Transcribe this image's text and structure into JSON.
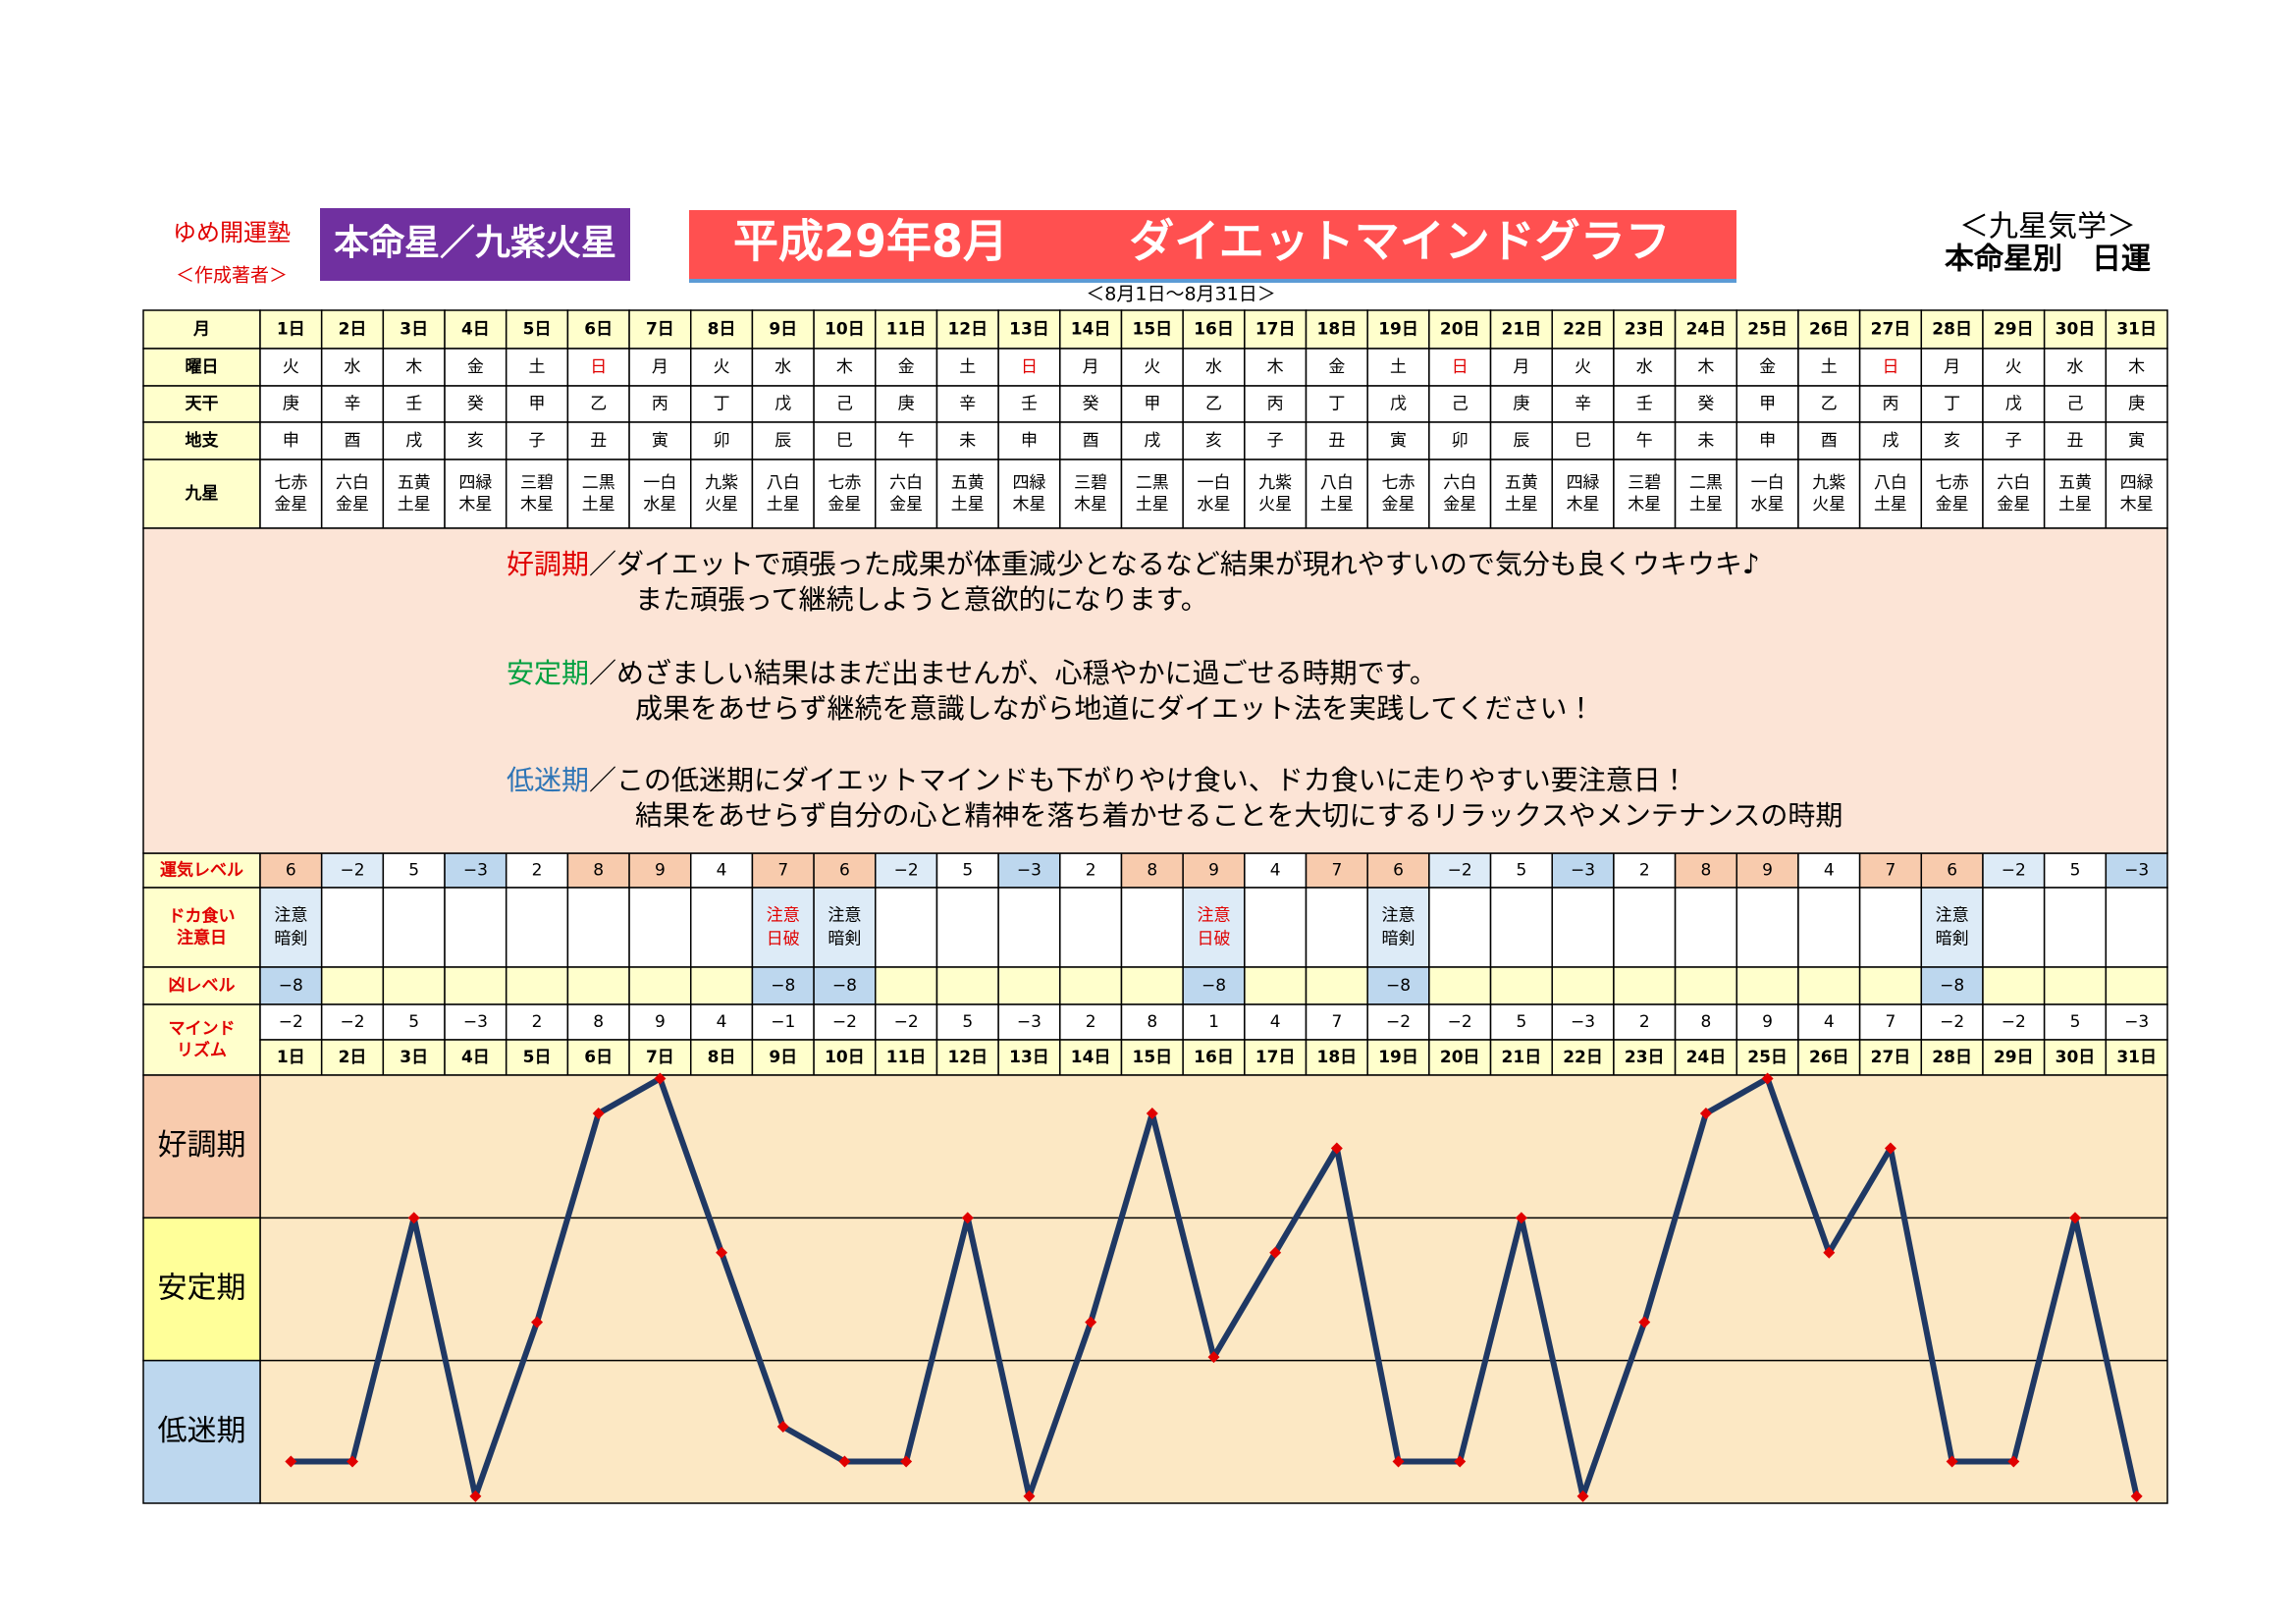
{
  "header": {
    "school": "ゆめ開運塾",
    "author": "＜作成著者＞",
    "honmei": "本命星／九紫火星",
    "period": "平成29年8月",
    "title": "ダイエットマインドグラフ",
    "category": "＜九星気学＞",
    "subcategory": "本命星別　日運",
    "date_range": "＜8月1日～8月31日＞"
  },
  "table": {
    "row_labels": {
      "month": "月",
      "weekday": "曜日",
      "tenkan": "天干",
      "chishi": "地支",
      "kyusei": "九星",
      "luck": "運気レベル",
      "binge": [
        "ドカ食い",
        "注意日"
      ],
      "bad": "凶レベル",
      "rhythm": [
        "マインド",
        "リズム"
      ]
    },
    "days": [
      "1日",
      "2日",
      "3日",
      "4日",
      "5日",
      "6日",
      "7日",
      "8日",
      "9日",
      "10日",
      "11日",
      "12日",
      "13日",
      "14日",
      "15日",
      "16日",
      "17日",
      "18日",
      "19日",
      "20日",
      "21日",
      "22日",
      "23日",
      "24日",
      "25日",
      "26日",
      "27日",
      "28日",
      "29日",
      "30日",
      "31日"
    ],
    "weekday": [
      "火",
      "水",
      "木",
      "金",
      "土",
      "日",
      "月",
      "火",
      "水",
      "木",
      "金",
      "土",
      "日",
      "月",
      "火",
      "水",
      "木",
      "金",
      "土",
      "日",
      "月",
      "火",
      "水",
      "木",
      "金",
      "土",
      "日",
      "月",
      "火",
      "水",
      "木"
    ],
    "weekday_color": [
      "#000",
      "#000",
      "#000",
      "#000",
      "#000",
      "#e00000",
      "#000",
      "#000",
      "#000",
      "#000",
      "#000",
      "#000",
      "#e00000",
      "#000",
      "#000",
      "#000",
      "#000",
      "#000",
      "#000",
      "#e00000",
      "#000",
      "#000",
      "#000",
      "#000",
      "#000",
      "#000",
      "#e00000",
      "#000",
      "#000",
      "#000",
      "#000"
    ],
    "tenkan": [
      "庚",
      "辛",
      "壬",
      "癸",
      "甲",
      "乙",
      "丙",
      "丁",
      "戊",
      "己",
      "庚",
      "辛",
      "壬",
      "癸",
      "甲",
      "乙",
      "丙",
      "丁",
      "戊",
      "己",
      "庚",
      "辛",
      "壬",
      "癸",
      "甲",
      "乙",
      "丙",
      "丁",
      "戊",
      "己",
      "庚"
    ],
    "chishi": [
      "申",
      "酉",
      "戌",
      "亥",
      "子",
      "丑",
      "寅",
      "卯",
      "辰",
      "巳",
      "午",
      "未",
      "申",
      "酉",
      "戌",
      "亥",
      "子",
      "丑",
      "寅",
      "卯",
      "辰",
      "巳",
      "午",
      "未",
      "申",
      "酉",
      "戌",
      "亥",
      "子",
      "丑",
      "寅"
    ],
    "kyusei": [
      [
        "七赤",
        "金星"
      ],
      [
        "六白",
        "金星"
      ],
      [
        "五黄",
        "土星"
      ],
      [
        "四緑",
        "木星"
      ],
      [
        "三碧",
        "木星"
      ],
      [
        "二黒",
        "土星"
      ],
      [
        "一白",
        "水星"
      ],
      [
        "九紫",
        "火星"
      ],
      [
        "八白",
        "土星"
      ],
      [
        "七赤",
        "金星"
      ],
      [
        "六白",
        "金星"
      ],
      [
        "五黄",
        "土星"
      ],
      [
        "四緑",
        "木星"
      ],
      [
        "三碧",
        "木星"
      ],
      [
        "二黒",
        "土星"
      ],
      [
        "一白",
        "水星"
      ],
      [
        "九紫",
        "火星"
      ],
      [
        "八白",
        "土星"
      ],
      [
        "七赤",
        "金星"
      ],
      [
        "六白",
        "金星"
      ],
      [
        "五黄",
        "土星"
      ],
      [
        "四緑",
        "木星"
      ],
      [
        "三碧",
        "木星"
      ],
      [
        "二黒",
        "土星"
      ],
      [
        "一白",
        "水星"
      ],
      [
        "九紫",
        "火星"
      ],
      [
        "八白",
        "土星"
      ],
      [
        "七赤",
        "金星"
      ],
      [
        "六白",
        "金星"
      ],
      [
        "五黄",
        "土星"
      ],
      [
        "四緑",
        "木星"
      ]
    ],
    "luck": [
      6,
      -2,
      5,
      -3,
      2,
      8,
      9,
      4,
      7,
      6,
      -2,
      5,
      -3,
      2,
      8,
      9,
      4,
      7,
      6,
      -2,
      5,
      -3,
      2,
      8,
      9,
      4,
      7,
      6,
      -2,
      5,
      -3
    ],
    "luck_labels": [
      "6",
      "−2",
      "5",
      "−3",
      "2",
      "8",
      "9",
      "4",
      "7",
      "6",
      "−2",
      "5",
      "−3",
      "2",
      "8",
      "9",
      "4",
      "7",
      "6",
      "−2",
      "5",
      "−3",
      "2",
      "8",
      "9",
      "4",
      "7",
      "6",
      "−2",
      "5",
      "−3"
    ],
    "binge": [
      {
        "text": [
          "注意",
          "暗剣"
        ],
        "color": "#000"
      },
      null,
      null,
      null,
      null,
      null,
      null,
      null,
      {
        "text": [
          "注意",
          "日破"
        ],
        "color": "#e00000"
      },
      {
        "text": [
          "注意",
          "暗剣"
        ],
        "color": "#000"
      },
      null,
      null,
      null,
      null,
      null,
      {
        "text": [
          "注意",
          "日破"
        ],
        "color": "#e00000"
      },
      null,
      null,
      {
        "text": [
          "注意",
          "暗剣"
        ],
        "color": "#000"
      },
      null,
      null,
      null,
      null,
      null,
      null,
      null,
      null,
      {
        "text": [
          "注意",
          "暗剣"
        ],
        "color": "#000"
      },
      null,
      null,
      null
    ],
    "bad": [
      -8,
      null,
      null,
      null,
      null,
      null,
      null,
      null,
      -8,
      -8,
      null,
      null,
      null,
      null,
      null,
      -8,
      null,
      null,
      -8,
      null,
      null,
      null,
      null,
      null,
      null,
      null,
      null,
      -8,
      null,
      null,
      null
    ],
    "bad_labels": [
      "−8",
      null,
      null,
      null,
      null,
      null,
      null,
      null,
      "−8",
      "−8",
      null,
      null,
      null,
      null,
      null,
      "−8",
      null,
      null,
      "−8",
      null,
      null,
      null,
      null,
      null,
      null,
      null,
      null,
      "−8",
      null,
      null,
      null
    ],
    "rhythm": [
      -2,
      -2,
      5,
      -3,
      2,
      8,
      9,
      4,
      -1,
      -2,
      -2,
      5,
      -3,
      2,
      8,
      1,
      4,
      7,
      -2,
      -2,
      5,
      -3,
      2,
      8,
      9,
      4,
      7,
      -2,
      -2,
      5,
      -3
    ],
    "rhythm_labels": [
      "−2",
      "−2",
      "5",
      "−3",
      "2",
      "8",
      "9",
      "4",
      "−1",
      "−2",
      "−2",
      "5",
      "−3",
      "2",
      "8",
      "1",
      "4",
      "7",
      "−2",
      "−2",
      "5",
      "−3",
      "2",
      "8",
      "9",
      "4",
      "7",
      "−2",
      "−2",
      "5",
      "−3"
    ]
  },
  "descriptions": [
    {
      "name": "好調期",
      "color": "#e00000",
      "lines": [
        "／ダイエットで頑張った成果が体重減少となるなど結果が現れやすいので気分も良くウキウキ♪",
        "また頑張って継続しようと意欲的になります。"
      ]
    },
    {
      "name": "安定期",
      "color": "#00a040",
      "lines": [
        "／めざましい結果はまだ出ませんが、心穏やかに過ごせる時期です。",
        "成果をあせらず継続を意識しながら地道にダイエット法を実践してください！"
      ]
    },
    {
      "name": "低迷期",
      "color": "#2e75b6",
      "lines": [
        "／この低迷期にダイエットマインドも下がりやけ食い、ドカ食いに走りやすい要注意日！",
        "結果をあせらず自分の心と精神を落ち着かせることを大切にするリラックスやメンテナンスの時期"
      ]
    }
  ],
  "chart": {
    "type": "line",
    "bands": [
      "好調期",
      "安定期",
      "低迷期"
    ],
    "band_colors": [
      "#f8cbad",
      "#ffff99",
      "#bdd7ee"
    ],
    "ylim": [
      -3.2,
      9.1
    ],
    "color": "#1f3864",
    "marker_color": "#e00000"
  }
}
